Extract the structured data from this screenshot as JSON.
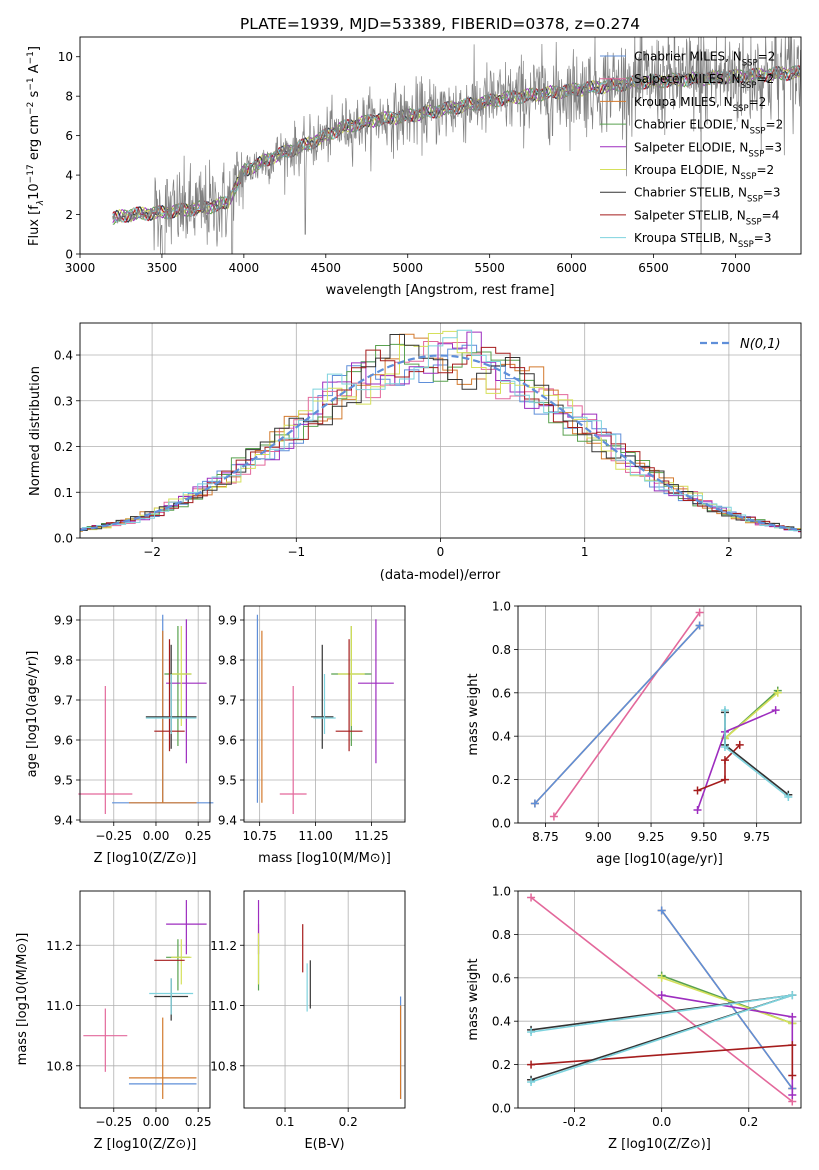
{
  "figure_title": "PLATE=1939, MJD=53389, FIBERID=0378, z=0.274",
  "models": [
    {
      "key": "chab_miles",
      "color": "#5f8fd9",
      "label": "Chabrier MILES, N_SSP=2"
    },
    {
      "key": "salp_miles",
      "color": "#e3689b",
      "label": "Salpeter MILES, N_SSP=2"
    },
    {
      "key": "krou_miles",
      "color": "#d37a2e",
      "label": "Kroupa MILES, N_SSP=2"
    },
    {
      "key": "chab_elodie",
      "color": "#59a14f",
      "label": "Chabrier ELODIE, N_SSP=2"
    },
    {
      "key": "salp_elodie",
      "color": "#9d2dbf",
      "label": "Salpeter ELODIE, N_SSP=3"
    },
    {
      "key": "krou_elodie",
      "color": "#d5e05a",
      "label": "Kroupa ELODIE, N_SSP=2"
    },
    {
      "key": "chab_stelib",
      "color": "#333333",
      "label": "Chabrier STELIB, N_SSP=3"
    },
    {
      "key": "salp_stelib",
      "color": "#a51c1c",
      "label": "Salpeter STELIB, N_SSP=4"
    },
    {
      "key": "krou_stelib",
      "color": "#7ed3de",
      "label": "Kroupa STELIB, N_SSP=3"
    }
  ],
  "chart_data": [
    {
      "id": "spectrum",
      "type": "line",
      "xlabel": "wavelength [Angstrom, rest frame]",
      "ylabel": "Flux [f_λ 10^-17 erg cm^-2 s^-1 A^-1]",
      "xlim": [
        3000,
        7400
      ],
      "ylim": [
        0,
        11
      ],
      "xticks": [
        3000,
        3500,
        4000,
        4500,
        5000,
        5500,
        6000,
        6500,
        7000
      ],
      "yticks": [
        0,
        2,
        4,
        6,
        8,
        10
      ],
      "grid": false,
      "legend": "right",
      "data_color": "#808080",
      "continuum_x": [
        3200,
        3300,
        3400,
        3500,
        3600,
        3700,
        3800,
        3900,
        4000,
        4200,
        4400,
        4600,
        4800,
        5000,
        5200,
        5400,
        5600,
        5800,
        6000,
        6200,
        6400,
        6600,
        6800,
        7000,
        7200,
        7400
      ],
      "continuum_y": [
        1.8,
        2.0,
        2.05,
        2.1,
        2.2,
        2.3,
        2.4,
        2.6,
        4.2,
        5.0,
        5.6,
        6.4,
        6.8,
        7.0,
        7.3,
        7.6,
        7.9,
        8.1,
        8.3,
        8.5,
        8.7,
        8.8,
        8.9,
        9.0,
        9.1,
        9.2
      ]
    },
    {
      "id": "residuals",
      "type": "histogram",
      "xlabel": "(data-model)/error",
      "ylabel": "Normed distribution",
      "xlim": [
        -2.5,
        2.5
      ],
      "ylim": [
        0,
        0.47
      ],
      "xticks": [
        -2,
        -1,
        0,
        1,
        2
      ],
      "yticks": [
        0.0,
        0.1,
        0.2,
        0.3,
        0.4
      ],
      "grid": true,
      "legend": "top-right",
      "reference_label": "N(0,1)",
      "reference_color": "#5f8fd9",
      "bin_width": 0.1
    },
    {
      "id": "age_vs_Z",
      "type": "errorbar",
      "xlabel": "Z [log10(Z/Z⊙)]",
      "ylabel": "age [log10(age/yr)]",
      "xlim": [
        -0.45,
        0.32
      ],
      "ylim": [
        9.395,
        9.935
      ],
      "xticks": [
        -0.25,
        0.0,
        0.25
      ],
      "yticks": [
        9.4,
        9.5,
        9.6,
        9.7,
        9.8,
        9.9
      ],
      "grid": true,
      "points": [
        {
          "m": 0,
          "x": 0.04,
          "y": 9.443,
          "xerr": 0.3,
          "yerr_lo": 0.0,
          "yerr_hi": 0.47
        },
        {
          "m": 1,
          "x": -0.3,
          "y": 9.465,
          "xerr": 0.16,
          "yerr_lo": 0.05,
          "yerr_hi": 0.27
        },
        {
          "m": 2,
          "x": 0.04,
          "y": 9.443,
          "xerr": 0.2,
          "yerr_lo": 0.0,
          "yerr_hi": 0.43
        },
        {
          "m": 3,
          "x": 0.13,
          "y": 9.765,
          "xerr": 0.08,
          "yerr_lo": 0.18,
          "yerr_hi": 0.12
        },
        {
          "m": 4,
          "x": 0.18,
          "y": 9.742,
          "xerr": 0.12,
          "yerr_lo": 0.2,
          "yerr_hi": 0.16
        },
        {
          "m": 5,
          "x": 0.15,
          "y": 9.765,
          "xerr": 0.06,
          "yerr_lo": 0.13,
          "yerr_hi": 0.12
        },
        {
          "m": 6,
          "x": 0.09,
          "y": 9.658,
          "xerr": 0.15,
          "yerr_lo": 0.08,
          "yerr_hi": 0.18
        },
        {
          "m": 7,
          "x": 0.08,
          "y": 9.622,
          "xerr": 0.09,
          "yerr_lo": 0.05,
          "yerr_hi": 0.23
        },
        {
          "m": 8,
          "x": 0.09,
          "y": 9.655,
          "xerr": 0.15,
          "yerr_lo": 0.04,
          "yerr_hi": 0.11
        }
      ]
    },
    {
      "id": "age_vs_mass",
      "type": "errorbar",
      "xlabel": "mass [log10(M/M⊙)]",
      "ylabel": "",
      "xlim": [
        10.68,
        11.4
      ],
      "ylim": [
        9.395,
        9.935
      ],
      "xticks": [
        10.75,
        11.0,
        11.25
      ],
      "yticks": [
        9.4,
        9.5,
        9.6,
        9.7,
        9.8,
        9.9
      ],
      "grid": true,
      "points": [
        {
          "m": 0,
          "x": 10.74,
          "y": 9.443,
          "xerr": 0.0,
          "yerr_lo": 0.0,
          "yerr_hi": 0.47
        },
        {
          "m": 1,
          "x": 10.9,
          "y": 9.465,
          "xerr": 0.06,
          "yerr_lo": 0.05,
          "yerr_hi": 0.27
        },
        {
          "m": 2,
          "x": 10.76,
          "y": 9.443,
          "xerr": 0.0,
          "yerr_lo": 0.0,
          "yerr_hi": 0.43
        },
        {
          "m": 3,
          "x": 11.16,
          "y": 9.765,
          "xerr": 0.09,
          "yerr_lo": 0.18,
          "yerr_hi": 0.12
        },
        {
          "m": 4,
          "x": 11.27,
          "y": 9.742,
          "xerr": 0.08,
          "yerr_lo": 0.2,
          "yerr_hi": 0.16
        },
        {
          "m": 5,
          "x": 11.16,
          "y": 9.765,
          "xerr": 0.06,
          "yerr_lo": 0.13,
          "yerr_hi": 0.12
        },
        {
          "m": 6,
          "x": 11.03,
          "y": 9.658,
          "xerr": 0.05,
          "yerr_lo": 0.08,
          "yerr_hi": 0.18
        },
        {
          "m": 7,
          "x": 11.15,
          "y": 9.622,
          "xerr": 0.06,
          "yerr_lo": 0.05,
          "yerr_hi": 0.23
        },
        {
          "m": 8,
          "x": 11.04,
          "y": 9.655,
          "xerr": 0.05,
          "yerr_lo": 0.04,
          "yerr_hi": 0.11
        }
      ]
    },
    {
      "id": "mass_weight_vs_age",
      "type": "line",
      "xlabel": "age [log10(age/yr)]",
      "ylabel": "mass weight",
      "xlim": [
        8.62,
        9.96
      ],
      "ylim": [
        0.0,
        1.0
      ],
      "xticks": [
        8.75,
        9.0,
        9.25,
        9.5,
        9.75
      ],
      "yticks": [
        0.0,
        0.2,
        0.4,
        0.6,
        0.8,
        1.0
      ],
      "grid": true,
      "series": [
        {
          "m": 1,
          "x": [
            8.79,
            9.48
          ],
          "y": [
            0.03,
            0.97
          ]
        },
        {
          "m": 2,
          "x": [
            8.7,
            9.48
          ],
          "y": [
            0.09,
            0.91
          ]
        },
        {
          "m": 0,
          "x": [
            8.7,
            9.48
          ],
          "y": [
            0.09,
            0.91
          ]
        },
        {
          "m": 3,
          "x": [
            9.6,
            9.85
          ],
          "y": [
            0.39,
            0.61
          ]
        },
        {
          "m": 5,
          "x": [
            9.6,
            9.85
          ],
          "y": [
            0.39,
            0.6
          ]
        },
        {
          "m": 4,
          "x": [
            9.47,
            9.6,
            9.84
          ],
          "y": [
            0.06,
            0.42,
            0.52
          ]
        },
        {
          "m": 7,
          "x": [
            9.47,
            9.6,
            9.6,
            9.67
          ],
          "y": [
            0.15,
            0.2,
            0.29,
            0.36
          ]
        },
        {
          "m": 6,
          "x": [
            9.6,
            9.6,
            9.9
          ],
          "y": [
            0.51,
            0.36,
            0.13
          ]
        },
        {
          "m": 8,
          "x": [
            9.6,
            9.6,
            9.9
          ],
          "y": [
            0.52,
            0.35,
            0.12
          ]
        }
      ]
    },
    {
      "id": "mass_vs_Z",
      "type": "errorbar",
      "xlabel": "Z [log10(Z/Z⊙)]",
      "ylabel": "mass [log10(M/M⊙)]",
      "xlim": [
        -0.45,
        0.32
      ],
      "ylim": [
        10.66,
        11.38
      ],
      "xticks": [
        -0.25,
        0.0,
        0.25
      ],
      "yticks": [
        10.8,
        11.0,
        11.2
      ],
      "grid": true,
      "points": [
        {
          "m": 0,
          "x": 0.04,
          "y": 10.74,
          "xerr": 0.2,
          "yerr_lo": 0.0,
          "yerr_hi": 0.0
        },
        {
          "m": 1,
          "x": -0.3,
          "y": 10.9,
          "xerr": 0.13,
          "yerr_lo": 0.12,
          "yerr_hi": 0.09
        },
        {
          "m": 2,
          "x": 0.04,
          "y": 10.76,
          "xerr": 0.2,
          "yerr_lo": 0.07,
          "yerr_hi": 0.2
        },
        {
          "m": 3,
          "x": 0.13,
          "y": 11.16,
          "xerr": 0.07,
          "yerr_lo": 0.11,
          "yerr_hi": 0.06
        },
        {
          "m": 4,
          "x": 0.18,
          "y": 11.27,
          "xerr": 0.12,
          "yerr_lo": 0.1,
          "yerr_hi": 0.08
        },
        {
          "m": 5,
          "x": 0.15,
          "y": 11.16,
          "xerr": 0.06,
          "yerr_lo": 0.09,
          "yerr_hi": 0.06
        },
        {
          "m": 6,
          "x": 0.09,
          "y": 11.03,
          "xerr": 0.1,
          "yerr_lo": 0.08,
          "yerr_hi": 0.06
        },
        {
          "m": 7,
          "x": 0.08,
          "y": 11.15,
          "xerr": 0.09,
          "yerr_lo": 0.0,
          "yerr_hi": 0.0
        },
        {
          "m": 8,
          "x": 0.09,
          "y": 11.04,
          "xerr": 0.13,
          "yerr_lo": 0.07,
          "yerr_hi": 0.05
        }
      ]
    },
    {
      "id": "mass_vs_ebv",
      "type": "errorbar",
      "xlabel": "E(B-V)",
      "ylabel": "",
      "xlim": [
        0.035,
        0.29
      ],
      "ylim": [
        10.66,
        11.38
      ],
      "xticks": [
        0.1,
        0.2
      ],
      "yticks": [
        10.8,
        11.0,
        11.2
      ],
      "grid": true,
      "points": [
        {
          "m": 0,
          "x": 0.283,
          "y": 10.74,
          "xerr": 0.0,
          "yerr_lo": 0.05,
          "yerr_hi": 0.29
        },
        {
          "m": 1,
          "x": 0.058,
          "y": 11.22,
          "xerr": 0.0,
          "yerr_lo": 0.0,
          "yerr_hi": 0.05
        },
        {
          "m": 2,
          "x": 0.283,
          "y": 10.76,
          "xerr": 0.0,
          "yerr_lo": 0.07,
          "yerr_hi": 0.24
        },
        {
          "m": 3,
          "x": 0.058,
          "y": 11.16,
          "xerr": 0.0,
          "yerr_lo": 0.11,
          "yerr_hi": 0.06
        },
        {
          "m": 4,
          "x": 0.058,
          "y": 11.27,
          "xerr": 0.0,
          "yerr_lo": 0.1,
          "yerr_hi": 0.08
        },
        {
          "m": 5,
          "x": 0.058,
          "y": 11.16,
          "xerr": 0.0,
          "yerr_lo": 0.09,
          "yerr_hi": 0.08
        },
        {
          "m": 6,
          "x": 0.14,
          "y": 11.07,
          "xerr": 0.0,
          "yerr_lo": 0.08,
          "yerr_hi": 0.08
        },
        {
          "m": 7,
          "x": 0.128,
          "y": 11.19,
          "xerr": 0.0,
          "yerr_lo": 0.08,
          "yerr_hi": 0.08
        },
        {
          "m": 8,
          "x": 0.135,
          "y": 11.06,
          "xerr": 0.0,
          "yerr_lo": 0.08,
          "yerr_hi": 0.08
        }
      ]
    },
    {
      "id": "mass_weight_vs_Z",
      "type": "line",
      "xlabel": "Z [log10(Z/Z⊙)]",
      "ylabel": "mass weight",
      "xlim": [
        -0.33,
        0.32
      ],
      "ylim": [
        0.0,
        1.0
      ],
      "xticks": [
        -0.2,
        0.0,
        0.2
      ],
      "yticks": [
        0.0,
        0.2,
        0.4,
        0.6,
        0.8,
        1.0
      ],
      "grid": true,
      "series": [
        {
          "m": 1,
          "x": [
            -0.3,
            0.3
          ],
          "y": [
            0.97,
            0.03
          ]
        },
        {
          "m": 2,
          "x": [
            0.0,
            0.3
          ],
          "y": [
            0.91,
            0.09
          ]
        },
        {
          "m": 0,
          "x": [
            0.0,
            0.3
          ],
          "y": [
            0.91,
            0.09
          ]
        },
        {
          "m": 3,
          "x": [
            0.0,
            0.3
          ],
          "y": [
            0.61,
            0.39
          ]
        },
        {
          "m": 5,
          "x": [
            0.0,
            0.3
          ],
          "y": [
            0.6,
            0.39
          ]
        },
        {
          "m": 4,
          "x": [
            0.0,
            0.3,
            0.3
          ],
          "y": [
            0.52,
            0.42,
            0.06
          ]
        },
        {
          "m": 7,
          "x": [
            -0.3,
            0.3,
            0.3
          ],
          "y": [
            0.2,
            0.29,
            0.15
          ]
        },
        {
          "m": 6,
          "x": [
            -0.3,
            0.3,
            -0.3
          ],
          "y": [
            0.13,
            0.52,
            0.36
          ]
        },
        {
          "m": 8,
          "x": [
            -0.3,
            0.3,
            -0.3
          ],
          "y": [
            0.12,
            0.52,
            0.35
          ]
        }
      ]
    }
  ]
}
